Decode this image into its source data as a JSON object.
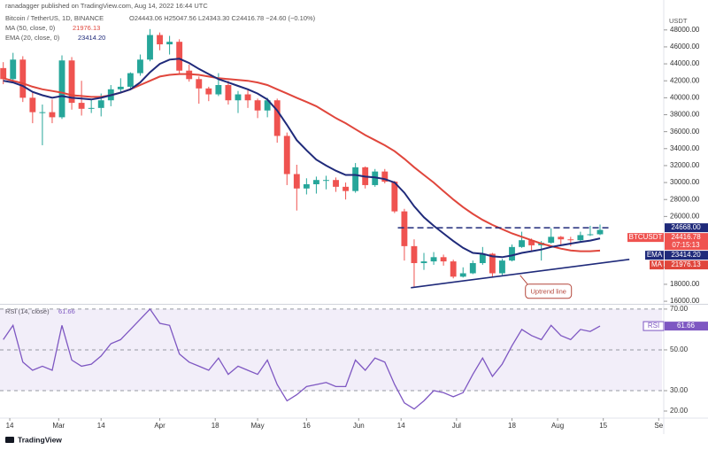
{
  "header": {
    "publisher": "ranadagger published on TradingView.com, Aug 14, 2022 16:44 UTC",
    "symbol": "Bitcoin / TetherUS, 1D, BINANCE",
    "ohlc": "O24443.06 H25047.56 L24343.30 C24416.78 −24.60 (−0.10%)",
    "logo": "TradingView"
  },
  "chart_data": [
    {
      "type": "candlestick",
      "y_unit": "USDT",
      "symbol_tag": "BTCUSDT",
      "countdown": "07:15:13",
      "up_color": "#26a69a",
      "down_color": "#ef5350",
      "x": [
        "2022-02-12",
        "2022-02-15",
        "2022-02-18",
        "2022-02-21",
        "2022-02-24",
        "2022-02-27",
        "2022-03-02",
        "2022-03-05",
        "2022-03-08",
        "2022-03-11",
        "2022-03-14",
        "2022-03-17",
        "2022-03-20",
        "2022-03-23",
        "2022-03-26",
        "2022-03-29",
        "2022-04-01",
        "2022-04-04",
        "2022-04-07",
        "2022-04-10",
        "2022-04-13",
        "2022-04-16",
        "2022-04-19",
        "2022-04-22",
        "2022-04-25",
        "2022-04-28",
        "2022-05-01",
        "2022-05-04",
        "2022-05-07",
        "2022-05-10",
        "2022-05-13",
        "2022-05-16",
        "2022-05-19",
        "2022-05-22",
        "2022-05-25",
        "2022-05-28",
        "2022-05-31",
        "2022-06-03",
        "2022-06-06",
        "2022-06-09",
        "2022-06-12",
        "2022-06-15",
        "2022-06-18",
        "2022-06-21",
        "2022-06-24",
        "2022-06-27",
        "2022-06-30",
        "2022-07-03",
        "2022-07-06",
        "2022-07-09",
        "2022-07-12",
        "2022-07-15",
        "2022-07-18",
        "2022-07-21",
        "2022-07-24",
        "2022-07-27",
        "2022-07-30",
        "2022-08-02",
        "2022-08-05",
        "2022-08-08",
        "2022-08-11",
        "2022-08-14"
      ],
      "open": [
        43500,
        42200,
        44500,
        40000,
        38300,
        38300,
        37700,
        44400,
        39400,
        38700,
        38800,
        39700,
        41000,
        41300,
        42900,
        44500,
        47400,
        46300,
        46600,
        43200,
        42200,
        41100,
        40400,
        41500,
        39700,
        40400,
        39700,
        38500,
        39700,
        35500,
        31000,
        29300,
        29800,
        30300,
        30300,
        29500,
        29000,
        31800,
        29700,
        31300,
        30100,
        26600,
        22500,
        20500,
        20700,
        21200,
        20700,
        18900,
        19300,
        20500,
        21600,
        19300,
        20800,
        22400,
        23200,
        22600,
        22900,
        23600,
        23300,
        23200,
        23800,
        23900
      ],
      "high": [
        44200,
        45300,
        44900,
        40600,
        39200,
        39800,
        45000,
        44800,
        42000,
        39800,
        40500,
        41500,
        42300,
        43000,
        45100,
        48100,
        47700,
        47300,
        46900,
        43900,
        42500,
        41300,
        42900,
        42000,
        40800,
        40900,
        39900,
        40000,
        39900,
        35900,
        32100,
        30500,
        30700,
        30800,
        30600,
        30000,
        32300,
        31900,
        31600,
        31600,
        30200,
        26900,
        23300,
        21700,
        21800,
        21500,
        20900,
        20000,
        20800,
        22400,
        21700,
        21000,
        22700,
        24200,
        23400,
        23100,
        24600,
        23700,
        23600,
        24200,
        24900,
        25047.56
      ],
      "low": [
        41600,
        41800,
        39500,
        37000,
        34400,
        37000,
        37500,
        38600,
        37900,
        38200,
        37800,
        39000,
        40600,
        40900,
        42600,
        44300,
        45600,
        45100,
        42700,
        41900,
        39300,
        39600,
        40200,
        39200,
        38200,
        38800,
        37600,
        37700,
        34700,
        29700,
        26700,
        28600,
        28700,
        29200,
        28900,
        28000,
        28800,
        29300,
        29500,
        29900,
        26400,
        20800,
        17600,
        19700,
        20300,
        20200,
        18700,
        18800,
        19200,
        20300,
        18900,
        19100,
        20700,
        22300,
        21900,
        20800,
        22800,
        22700,
        22500,
        22900,
        23700,
        23800
      ],
      "close": [
        42200,
        44500,
        40000,
        38300,
        38300,
        37700,
        44400,
        39400,
        38700,
        38800,
        39700,
        41000,
        41300,
        42900,
        44500,
        47400,
        46300,
        46600,
        43200,
        42200,
        41100,
        40400,
        41500,
        39700,
        40400,
        39700,
        38500,
        39700,
        35500,
        31000,
        29300,
        29800,
        30300,
        30300,
        29500,
        29000,
        31800,
        29700,
        31300,
        30100,
        26600,
        22500,
        20500,
        20700,
        21200,
        20700,
        18900,
        19300,
        20500,
        21600,
        19300,
        20800,
        22400,
        23200,
        22600,
        22900,
        23600,
        23300,
        23200,
        23800,
        23900,
        24416.78
      ],
      "series": [
        {
          "name": "MA (50, close, 0)",
          "tag": "MA",
          "color": "#e0463c",
          "last_label": "21976.13",
          "values": [
            42300,
            42000,
            41700,
            41300,
            41000,
            40800,
            40600,
            40300,
            40200,
            40100,
            40100,
            40300,
            40600,
            41000,
            41500,
            42000,
            42500,
            42700,
            42800,
            42800,
            42700,
            42500,
            42300,
            42200,
            42100,
            42000,
            41800,
            41500,
            41000,
            40500,
            40000,
            39500,
            39000,
            38300,
            37600,
            37000,
            36300,
            35600,
            35000,
            34400,
            33700,
            32800,
            31800,
            30900,
            30000,
            29000,
            28000,
            27100,
            26300,
            25600,
            25000,
            24500,
            24000,
            23600,
            23200,
            22800,
            22500,
            22200,
            22000,
            21900,
            21900,
            21976.13
          ]
        },
        {
          "name": "EMA (20, close, 0)",
          "tag": "EMA",
          "color": "#1f2a7a",
          "last_label": "23414.20",
          "values": [
            42000,
            41800,
            41400,
            40700,
            40300,
            40000,
            40200,
            40000,
            39900,
            39800,
            40000,
            40300,
            40600,
            41000,
            41800,
            43000,
            44000,
            44500,
            44600,
            44100,
            43400,
            42800,
            42200,
            41800,
            41400,
            41000,
            40500,
            39800,
            38500,
            36800,
            35000,
            33800,
            32700,
            32000,
            31400,
            30900,
            30900,
            30700,
            30600,
            30400,
            30000,
            28800,
            27200,
            25900,
            24900,
            24000,
            23100,
            22300,
            21700,
            21600,
            21300,
            21200,
            21400,
            21700,
            21900,
            22100,
            22400,
            22600,
            22800,
            23000,
            23150,
            23414.2
          ]
        }
      ],
      "hlines": [
        {
          "value": 24668,
          "label": "24668.00",
          "color": "#1f2a7a",
          "x": [
            "2022-06-13",
            "2022-08-17"
          ]
        }
      ],
      "trendlines": [
        {
          "label": "Uptrend line",
          "color": "#1f2a7a",
          "x": [
            "2022-06-17",
            "2022-08-23"
          ],
          "y": [
            17600,
            20940
          ]
        }
      ],
      "xlim": [
        "2022-02-11",
        "2022-09-02"
      ],
      "ylim": [
        15800,
        49440
      ],
      "yticks": [
        {
          "value": 16000,
          "label": "16000.00"
        },
        {
          "value": 18000,
          "label": "18000.00"
        },
        {
          "value": 20000,
          "label": "20000.00"
        },
        {
          "value": 26000,
          "label": "26000.00"
        },
        {
          "value": 28000,
          "label": "28000.00"
        },
        {
          "value": 30000,
          "label": "30000.00"
        },
        {
          "value": 32000,
          "label": "32000.00"
        },
        {
          "value": 34000,
          "label": "34000.00"
        },
        {
          "value": 36000,
          "label": "36000.00"
        },
        {
          "value": 38000,
          "label": "38000.00"
        },
        {
          "value": 40000,
          "label": "40000.00"
        },
        {
          "value": 42000,
          "label": "42000.00"
        },
        {
          "value": 44000,
          "label": "44000.00"
        },
        {
          "value": 46000,
          "label": "46000.00"
        },
        {
          "value": 48000,
          "label": "48000.00"
        }
      ]
    },
    {
      "type": "line",
      "title": "RSI (14, close)",
      "x": [
        "2022-02-12",
        "2022-02-15",
        "2022-02-18",
        "2022-02-21",
        "2022-02-24",
        "2022-02-27",
        "2022-03-02",
        "2022-03-05",
        "2022-03-08",
        "2022-03-11",
        "2022-03-14",
        "2022-03-17",
        "2022-03-20",
        "2022-03-23",
        "2022-03-26",
        "2022-03-29",
        "2022-04-01",
        "2022-04-04",
        "2022-04-07",
        "2022-04-10",
        "2022-04-13",
        "2022-04-16",
        "2022-04-19",
        "2022-04-22",
        "2022-04-25",
        "2022-04-28",
        "2022-05-01",
        "2022-05-04",
        "2022-05-07",
        "2022-05-10",
        "2022-05-13",
        "2022-05-16",
        "2022-05-19",
        "2022-05-22",
        "2022-05-25",
        "2022-05-28",
        "2022-05-31",
        "2022-06-03",
        "2022-06-06",
        "2022-06-09",
        "2022-06-12",
        "2022-06-15",
        "2022-06-18",
        "2022-06-21",
        "2022-06-24",
        "2022-06-27",
        "2022-06-30",
        "2022-07-03",
        "2022-07-06",
        "2022-07-09",
        "2022-07-12",
        "2022-07-15",
        "2022-07-18",
        "2022-07-21",
        "2022-07-24",
        "2022-07-27",
        "2022-07-30",
        "2022-08-02",
        "2022-08-05",
        "2022-08-08",
        "2022-08-11",
        "2022-08-14"
      ],
      "series": [
        {
          "name": "RSI",
          "color": "#7e57c2",
          "values": [
            55,
            62,
            44,
            40,
            42,
            40,
            62,
            45,
            42,
            43,
            47,
            53,
            55,
            60,
            65,
            70,
            63,
            62,
            48,
            44,
            42,
            40,
            46,
            38,
            42,
            40,
            38,
            45,
            33,
            25,
            28,
            32,
            33,
            34,
            32,
            32,
            45,
            40,
            46,
            44,
            33,
            24,
            21,
            25,
            30,
            29,
            27,
            29,
            38,
            46,
            37,
            43,
            52,
            60,
            57,
            55,
            62,
            57,
            55,
            60,
            59,
            61.66
          ]
        }
      ],
      "band": [
        30,
        70
      ],
      "levels": [
        70,
        50,
        30
      ],
      "band_color": "#7e57c2",
      "xlim": [
        "2022-02-11",
        "2022-09-02"
      ],
      "ylim": [
        17.4,
        71.7
      ],
      "yticks": [
        {
          "value": 20,
          "label": "20.00"
        },
        {
          "value": 30,
          "label": "30.00"
        },
        {
          "value": 50,
          "label": "50.00"
        },
        {
          "value": 70,
          "label": "70.00"
        }
      ],
      "xticks": [
        {
          "value": "2022-02-14",
          "label": "14"
        },
        {
          "value": "2022-03-01",
          "label": "Mar"
        },
        {
          "value": "2022-03-14",
          "label": "14"
        },
        {
          "value": "2022-04-01",
          "label": "Apr"
        },
        {
          "value": "2022-04-18",
          "label": "18"
        },
        {
          "value": "2022-05-01",
          "label": "May"
        },
        {
          "value": "2022-05-16",
          "label": "16"
        },
        {
          "value": "2022-06-01",
          "label": "Jun"
        },
        {
          "value": "2022-06-14",
          "label": "14"
        },
        {
          "value": "2022-07-01",
          "label": "Jul"
        },
        {
          "value": "2022-07-18",
          "label": "18"
        },
        {
          "value": "2022-08-01",
          "label": "Aug"
        },
        {
          "value": "2022-08-15",
          "label": "15"
        },
        {
          "value": "2022-09-01",
          "label": "Se"
        }
      ]
    }
  ]
}
